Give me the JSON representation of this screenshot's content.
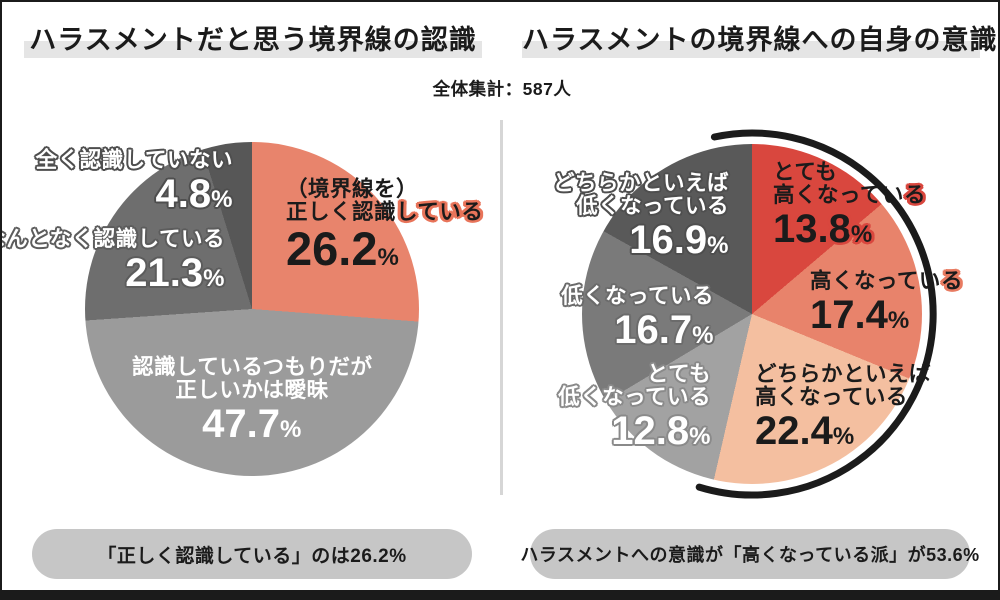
{
  "page": {
    "total_label": "全体集計：587人"
  },
  "left_chart": {
    "title": "ハラスメントだと思う境界線の認識",
    "caption": "「正しく認識している」のは26.2%",
    "labels": [
      {
        "lines": [
          [
            {
              "t": "（境界線を）"
            }
          ],
          [
            {
              "t": "正しく認識"
            },
            {
              "t": "している",
              "s": "accent"
            }
          ],
          [
            {
              "t": "26.2",
              "s": "num big"
            },
            {
              "t": "%",
              "s": "pct"
            }
          ]
        ]
      },
      {
        "lines": [
          [
            {
              "t": "全く認識していない"
            }
          ],
          [
            {
              "t": "4.8",
              "s": "num"
            },
            {
              "t": "%",
              "s": "pct"
            }
          ]
        ]
      },
      {
        "lines": [
          [
            {
              "t": "なんとなく認識している"
            }
          ],
          [
            {
              "t": "21.3",
              "s": "num"
            },
            {
              "t": "%",
              "s": "pct"
            }
          ]
        ]
      },
      {
        "lines": [
          [
            {
              "t": "認識しているつもりだが"
            }
          ],
          [
            {
              "t": "正しいかは曖昧"
            }
          ],
          [
            {
              "t": "47.7",
              "s": "num"
            },
            {
              "t": "%",
              "s": "pct"
            }
          ]
        ]
      }
    ]
  },
  "right_chart": {
    "title": "ハラスメントの境界線への自身の意識",
    "caption": "ハラスメントへの意識が「高くなっている派」が53.6%",
    "labels": [
      {
        "lines": [
          [
            {
              "t": "とても"
            }
          ],
          [
            {
              "t": "高くなってい"
            },
            {
              "t": "る",
              "s": "accent"
            }
          ],
          [
            {
              "t": "13.8",
              "s": "num accent"
            },
            {
              "t": "%",
              "s": "pct accent"
            }
          ]
        ]
      },
      {
        "lines": [
          [
            {
              "t": "高くなってい"
            },
            {
              "t": "る",
              "s": "accent"
            }
          ],
          [
            {
              "t": "17.4",
              "s": "num"
            },
            {
              "t": "%",
              "s": "pct"
            }
          ]
        ]
      },
      {
        "lines": [
          [
            {
              "t": "どちらかといえば"
            }
          ],
          [
            {
              "t": "高くなっている"
            }
          ],
          [
            {
              "t": "22.4",
              "s": "num"
            },
            {
              "t": "%",
              "s": "pct"
            }
          ]
        ]
      },
      {
        "lines": [
          [
            {
              "t": "とても"
            }
          ],
          [
            {
              "t": "低くなっている"
            }
          ],
          [
            {
              "t": "12.8",
              "s": "num"
            },
            {
              "t": "%",
              "s": "pct"
            }
          ]
        ]
      },
      {
        "lines": [
          [
            {
              "t": "低くなっている"
            }
          ],
          [
            {
              "t": "16.7",
              "s": "num"
            },
            {
              "t": "%",
              "s": "pct"
            }
          ]
        ]
      },
      {
        "lines": [
          [
            {
              "t": "どちらかといえば"
            }
          ],
          [
            {
              "t": "低くなっている"
            }
          ],
          [
            {
              "t": "16.9",
              "s": "num"
            },
            {
              "t": "%",
              "s": "pct"
            }
          ]
        ]
      }
    ]
  },
  "chart_data": [
    {
      "type": "pie",
      "title": "ハラスメントだと思う境界線の認識",
      "unit": "%",
      "start_angle_deg": 0,
      "direction": "clockwise",
      "categories": [
        "（境界線を）正しく認識している",
        "認識しているつもりだが正しいかは曖昧",
        "なんとなく認識している",
        "全く認識していない"
      ],
      "values": [
        26.2,
        47.7,
        21.3,
        4.8
      ],
      "colors": [
        "#E8846C",
        "#9B9B9B",
        "#6E6E6E",
        "#575757"
      ],
      "caption": "「正しく認識している」のは26.2%"
    },
    {
      "type": "pie",
      "title": "ハラスメントの境界線への自身の意識",
      "unit": "%",
      "start_angle_deg": 0,
      "direction": "clockwise",
      "categories": [
        "とても高くなっている",
        "高くなっている",
        "どちらかといえば高くなっている",
        "とても低くなっている",
        "低くなっている",
        "どちらかといえば低くなっている"
      ],
      "values": [
        13.8,
        17.4,
        22.4,
        12.8,
        16.7,
        16.9
      ],
      "colors": [
        "#D9473E",
        "#E8836B",
        "#F4BFA0",
        "#A2A2A2",
        "#7A7A7A",
        "#595959"
      ],
      "highlight_group": {
        "label": "高くなっている派",
        "categories_count": 3,
        "total": 53.6
      },
      "caption": "ハラスメントへの意識が「高くなっている派」が53.6%"
    }
  ]
}
